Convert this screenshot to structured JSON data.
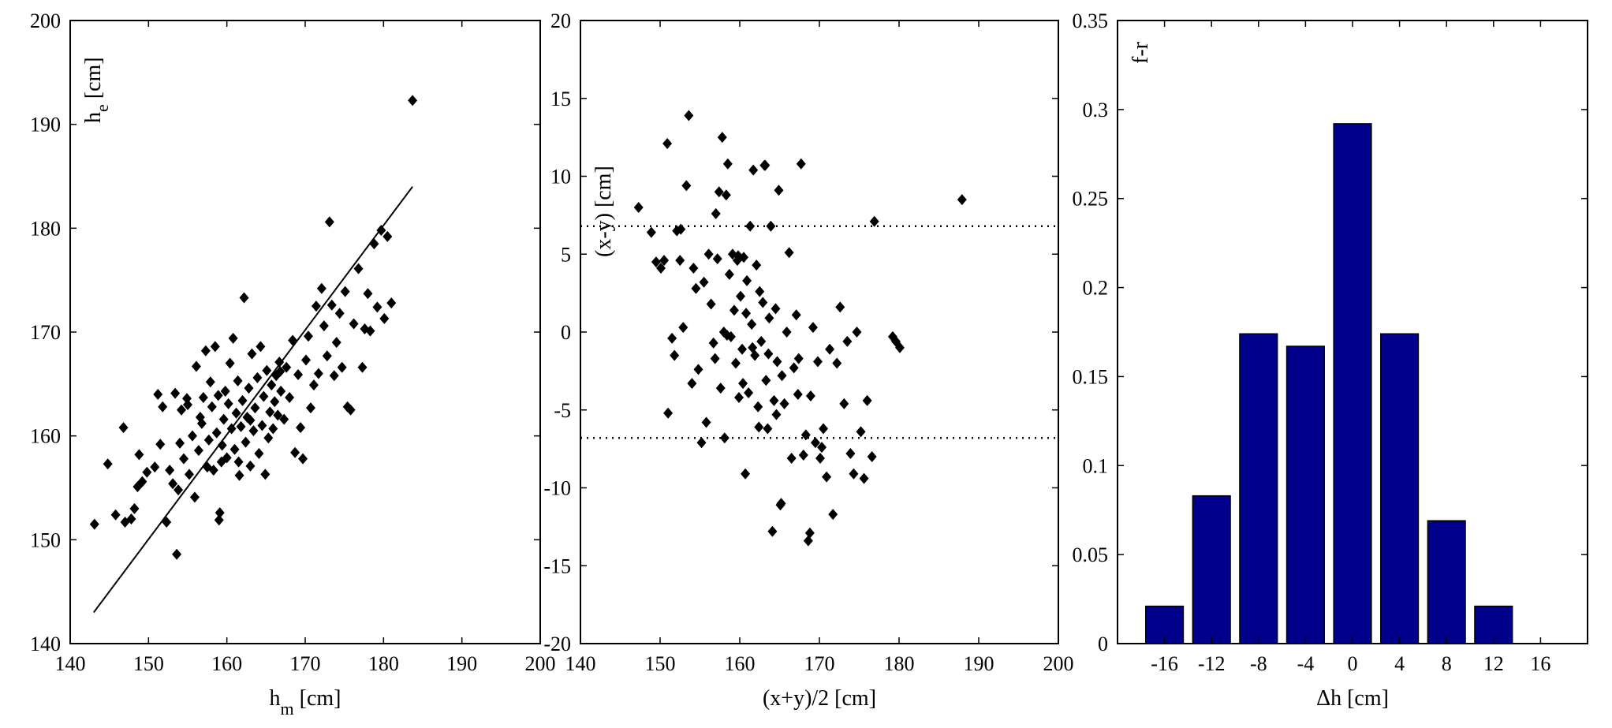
{
  "colors": {
    "bar_fill": "#00008B",
    "marker": "#000000",
    "line": "#000000"
  },
  "chart_data": [
    {
      "type": "scatter",
      "xlabel": {
        "main": "h",
        "sub": "m",
        "unit": " [cm]"
      },
      "ylabel": {
        "main": "h",
        "sub": "e",
        "unit": " [cm]"
      },
      "xlim": [
        140,
        200
      ],
      "ylim": [
        140,
        200
      ],
      "xticks": [
        140,
        150,
        160,
        170,
        180,
        190,
        200
      ],
      "yticks": [
        150,
        160,
        170,
        180,
        190,
        200
      ],
      "marker": "diamond",
      "regression_line": {
        "x": [
          143,
          183.7
        ],
        "y": [
          143,
          184
        ]
      },
      "points": [
        [
          143.1,
          151.5
        ],
        [
          144.8,
          157.3
        ],
        [
          145.8,
          152.4
        ],
        [
          146.8,
          160.8
        ],
        [
          147.0,
          151.7
        ],
        [
          147.8,
          152.0
        ],
        [
          148.2,
          153.0
        ],
        [
          148.6,
          155.1
        ],
        [
          148.8,
          158.2
        ],
        [
          149.2,
          155.6
        ],
        [
          149.8,
          156.5
        ],
        [
          150.8,
          157.0
        ],
        [
          151.2,
          164.0
        ],
        [
          151.8,
          162.8
        ],
        [
          152.3,
          151.7
        ],
        [
          152.7,
          156.7
        ],
        [
          153.1,
          155.4
        ],
        [
          153.4,
          164.1
        ],
        [
          153.6,
          148.6
        ],
        [
          153.8,
          154.8
        ],
        [
          154.0,
          159.3
        ],
        [
          154.2,
          162.5
        ],
        [
          154.5,
          157.8
        ],
        [
          154.9,
          163.6
        ],
        [
          155.2,
          156.3
        ],
        [
          155.6,
          160.0
        ],
        [
          155.9,
          154.1
        ],
        [
          156.1,
          166.7
        ],
        [
          156.4,
          158.6
        ],
        [
          156.8,
          161.2
        ],
        [
          157.0,
          163.7
        ],
        [
          157.3,
          168.2
        ],
        [
          157.5,
          157.0
        ],
        [
          157.7,
          159.6
        ],
        [
          157.9,
          165.2
        ],
        [
          158.1,
          162.8
        ],
        [
          158.3,
          156.7
        ],
        [
          158.5,
          168.6
        ],
        [
          158.7,
          160.3
        ],
        [
          158.9,
          163.9
        ],
        [
          159.1,
          152.6
        ],
        [
          159.3,
          157.5
        ],
        [
          159.4,
          159.1
        ],
        [
          159.6,
          161.6
        ],
        [
          159.8,
          164.3
        ],
        [
          160.0,
          157.9
        ],
        [
          160.2,
          163.1
        ],
        [
          160.4,
          167.0
        ],
        [
          160.6,
          160.7
        ],
        [
          160.8,
          169.4
        ],
        [
          161.0,
          158.7
        ],
        [
          161.2,
          162.2
        ],
        [
          161.4,
          165.3
        ],
        [
          161.6,
          156.2
        ],
        [
          161.8,
          160.9
        ],
        [
          162.0,
          163.4
        ],
        [
          162.2,
          173.3
        ],
        [
          162.4,
          159.4
        ],
        [
          162.6,
          161.8
        ],
        [
          162.8,
          164.6
        ],
        [
          163.0,
          157.1
        ],
        [
          163.2,
          167.9
        ],
        [
          163.4,
          160.5
        ],
        [
          163.6,
          162.7
        ],
        [
          163.9,
          165.6
        ],
        [
          164.1,
          158.3
        ],
        [
          164.3,
          168.6
        ],
        [
          164.5,
          161.0
        ],
        [
          164.7,
          163.8
        ],
        [
          164.9,
          156.3
        ],
        [
          165.1,
          166.3
        ],
        [
          165.3,
          159.8
        ],
        [
          165.5,
          162.3
        ],
        [
          165.7,
          164.9
        ],
        [
          165.9,
          160.7
        ],
        [
          166.1,
          163.3
        ],
        [
          166.3,
          165.8
        ],
        [
          166.5,
          162.0
        ],
        [
          166.7,
          167.1
        ],
        [
          166.9,
          164.3
        ],
        [
          167.3,
          161.6
        ],
        [
          167.6,
          166.6
        ],
        [
          168.0,
          163.7
        ],
        [
          168.4,
          169.2
        ],
        [
          168.7,
          158.4
        ],
        [
          169.1,
          165.9
        ],
        [
          169.4,
          160.8
        ],
        [
          169.7,
          157.8
        ],
        [
          170.1,
          167.3
        ],
        [
          170.4,
          169.6
        ],
        [
          170.7,
          162.7
        ],
        [
          171.1,
          164.9
        ],
        [
          171.4,
          172.5
        ],
        [
          171.7,
          166.0
        ],
        [
          172.1,
          174.2
        ],
        [
          172.4,
          170.6
        ],
        [
          172.8,
          167.7
        ],
        [
          173.1,
          180.6
        ],
        [
          173.4,
          172.6
        ],
        [
          173.7,
          165.8
        ],
        [
          174.0,
          169.0
        ],
        [
          174.4,
          171.8
        ],
        [
          174.7,
          166.6
        ],
        [
          175.1,
          173.9
        ],
        [
          175.4,
          162.8
        ],
        [
          175.8,
          162.5
        ],
        [
          176.2,
          170.8
        ],
        [
          176.8,
          176.1
        ],
        [
          177.3,
          166.6
        ],
        [
          177.6,
          170.3
        ],
        [
          178.0,
          173.7
        ],
        [
          178.3,
          170.1
        ],
        [
          178.8,
          178.5
        ],
        [
          179.2,
          172.4
        ],
        [
          179.7,
          179.8
        ],
        [
          180.1,
          171.3
        ],
        [
          180.5,
          179.2
        ],
        [
          181.0,
          172.8
        ],
        [
          183.7,
          192.3
        ],
        [
          151.5,
          159.2
        ],
        [
          159.0,
          151.9
        ],
        [
          155.0,
          163.0
        ],
        [
          163.0,
          161.5
        ],
        [
          166.8,
          166.2
        ],
        [
          161.5,
          157.5
        ],
        [
          156.6,
          161.8
        ]
      ]
    },
    {
      "type": "scatter",
      "xlabel": "(x+y)/2 [cm]",
      "ylabel": "(x-y) [cm]",
      "xlim": [
        140,
        200
      ],
      "ylim": [
        -20,
        20
      ],
      "xticks": [
        140,
        150,
        160,
        170,
        180,
        190,
        200
      ],
      "yticks": [
        -20,
        -15,
        -10,
        -5,
        0,
        5,
        10,
        15,
        20
      ],
      "marker": "diamond",
      "reference_lines": [
        6.8,
        -6.8
      ],
      "reference_line_style": "dotted",
      "points": [
        [
          147.3,
          8.0
        ],
        [
          148.9,
          6.4
        ],
        [
          149.5,
          4.5
        ],
        [
          150.1,
          4.1
        ],
        [
          150.5,
          4.6
        ],
        [
          150.9,
          12.1
        ],
        [
          151.0,
          -5.2
        ],
        [
          151.5,
          -0.4
        ],
        [
          151.8,
          -1.5
        ],
        [
          152.1,
          6.5
        ],
        [
          152.6,
          6.6
        ],
        [
          152.9,
          0.3
        ],
        [
          153.3,
          9.4
        ],
        [
          153.6,
          13.9
        ],
        [
          154.2,
          4.1
        ],
        [
          154.5,
          2.8
        ],
        [
          154.8,
          -2.4
        ],
        [
          155.2,
          -7.1
        ],
        [
          155.5,
          3.2
        ],
        [
          155.8,
          -5.8
        ],
        [
          156.1,
          5.0
        ],
        [
          156.4,
          1.8
        ],
        [
          156.7,
          -0.7
        ],
        [
          157.0,
          7.6
        ],
        [
          157.2,
          4.7
        ],
        [
          157.4,
          9.0
        ],
        [
          157.6,
          -3.6
        ],
        [
          157.8,
          12.5
        ],
        [
          158.0,
          0.0
        ],
        [
          158.1,
          -6.8
        ],
        [
          158.3,
          8.8
        ],
        [
          158.5,
          10.8
        ],
        [
          158.7,
          3.7
        ],
        [
          158.9,
          -0.3
        ],
        [
          159.1,
          5.0
        ],
        [
          159.3,
          1.4
        ],
        [
          159.5,
          -2.0
        ],
        [
          159.7,
          4.6
        ],
        [
          159.9,
          -4.2
        ],
        [
          160.1,
          2.3
        ],
        [
          160.3,
          -1.1
        ],
        [
          160.5,
          4.8
        ],
        [
          160.7,
          -9.1
        ],
        [
          160.9,
          3.3
        ],
        [
          161.1,
          -3.9
        ],
        [
          161.3,
          6.8
        ],
        [
          161.5,
          0.5
        ],
        [
          161.7,
          10.4
        ],
        [
          161.9,
          -1.5
        ],
        [
          162.1,
          4.3
        ],
        [
          162.3,
          -4.8
        ],
        [
          162.5,
          2.6
        ],
        [
          162.7,
          -0.6
        ],
        [
          162.9,
          1.9
        ],
        [
          163.1,
          10.7
        ],
        [
          163.3,
          -3.1
        ],
        [
          163.5,
          -6.2
        ],
        [
          163.7,
          0.9
        ],
        [
          163.9,
          6.8
        ],
        [
          164.1,
          -12.8
        ],
        [
          164.3,
          -4.4
        ],
        [
          164.5,
          1.5
        ],
        [
          164.7,
          -1.9
        ],
        [
          164.9,
          9.1
        ],
        [
          165.1,
          -11.1
        ],
        [
          165.3,
          -2.8
        ],
        [
          165.6,
          -4.6
        ],
        [
          165.9,
          0.0
        ],
        [
          166.2,
          5.1
        ],
        [
          166.5,
          -8.1
        ],
        [
          166.8,
          -2.3
        ],
        [
          167.1,
          1.1
        ],
        [
          167.4,
          -1.7
        ],
        [
          167.7,
          10.8
        ],
        [
          168.0,
          -7.9
        ],
        [
          168.3,
          -6.6
        ],
        [
          168.6,
          -13.4
        ],
        [
          168.9,
          -4.1
        ],
        [
          169.2,
          0.3
        ],
        [
          169.5,
          -7.1
        ],
        [
          169.8,
          -1.9
        ],
        [
          170.1,
          -8.1
        ],
        [
          170.5,
          -6.2
        ],
        [
          170.9,
          -9.3
        ],
        [
          171.3,
          -1.1
        ],
        [
          171.7,
          -11.7
        ],
        [
          172.2,
          -2.0
        ],
        [
          172.6,
          1.6
        ],
        [
          173.1,
          -4.6
        ],
        [
          173.5,
          -0.6
        ],
        [
          173.9,
          -7.8
        ],
        [
          174.3,
          -9.1
        ],
        [
          174.7,
          0.0
        ],
        [
          175.2,
          -6.4
        ],
        [
          175.6,
          -9.4
        ],
        [
          176.0,
          -4.4
        ],
        [
          176.6,
          -8.0
        ],
        [
          176.9,
          7.1
        ],
        [
          179.2,
          -0.3
        ],
        [
          179.6,
          -0.6
        ],
        [
          180.1,
          -1.0
        ],
        [
          187.9,
          8.5
        ],
        [
          152.5,
          4.6
        ],
        [
          154.0,
          -3.3
        ],
        [
          156.9,
          -1.7
        ],
        [
          158.4,
          -0.2
        ],
        [
          159.8,
          4.9
        ],
        [
          160.8,
          1.2
        ],
        [
          161.6,
          -1.0
        ],
        [
          162.4,
          -6.1
        ],
        [
          163.6,
          -1.4
        ],
        [
          164.6,
          -5.3
        ],
        [
          165.2,
          -11.0
        ],
        [
          167.3,
          -4.0
        ],
        [
          168.8,
          -12.9
        ],
        [
          170.3,
          -7.4
        ],
        [
          163.2,
          10.7
        ],
        [
          160.4,
          -3.3
        ]
      ]
    },
    {
      "type": "bar",
      "xlabel": "Δh [cm]",
      "ylabel": "f-r",
      "xlim": [
        -20,
        20
      ],
      "ylim": [
        0,
        0.35
      ],
      "xticks": [
        -16,
        -12,
        -8,
        -4,
        0,
        4,
        8,
        12,
        16
      ],
      "yticks": [
        0,
        0.05,
        0.1,
        0.15,
        0.2,
        0.25,
        0.3,
        0.35
      ],
      "ytick_labels": [
        "0",
        "0.05",
        "0.1",
        "0.15",
        "0.2",
        "0.25",
        "0.3",
        "0.35"
      ],
      "bar_width": 3.2,
      "categories": [
        -16,
        -12,
        -8,
        -4,
        0,
        4,
        8,
        12
      ],
      "values": [
        0.021,
        0.083,
        0.174,
        0.167,
        0.292,
        0.174,
        0.069,
        0.021
      ]
    }
  ]
}
